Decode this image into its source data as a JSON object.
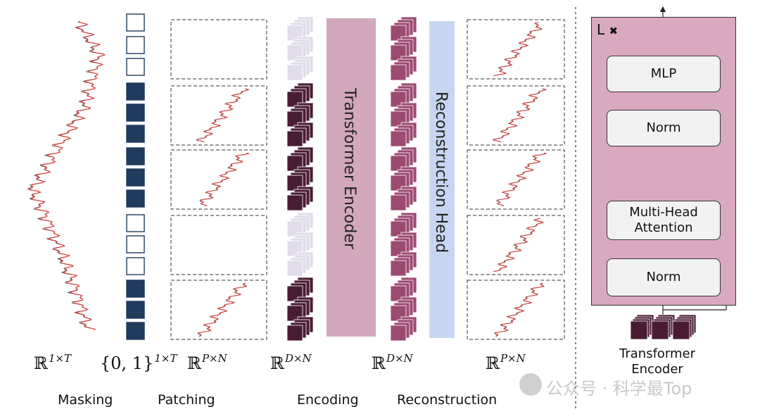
{
  "stage_labels": {
    "masking": "Masking",
    "patching": "Patching",
    "encoding": "Encoding",
    "reconstruction": "Reconstruction"
  },
  "math_labels": {
    "series": {
      "base": "ℝ",
      "sup": "1×T"
    },
    "mask": {
      "base": "{0, 1}",
      "sup": "1×T"
    },
    "patches": {
      "base": "ℝ",
      "sup": "P×N"
    },
    "embeddings": {
      "base": "ℝ",
      "sup": "D×N"
    },
    "recon_embeddings": {
      "base": "ℝ",
      "sup": "D×N"
    },
    "recon_patches": {
      "base": "ℝ",
      "sup": "P×N"
    }
  },
  "blocks": {
    "transformer_encoder": "Transformer Encoder",
    "reconstruction_head": "Reconstruction Head"
  },
  "detail": {
    "repeat": "L",
    "repeat_symbol": "✖",
    "mlp": "MLP",
    "norm_top": "Norm",
    "attention_line1": "Multi-Head",
    "attention_line2": "Attention",
    "norm_bottom": "Norm",
    "add_symbol": "+",
    "caption_line1": "Transformer",
    "caption_line2": "Encoder"
  },
  "mask_pattern": [
    0,
    0,
    0,
    1,
    1,
    1,
    1,
    1,
    1,
    0,
    0,
    0,
    1,
    1,
    1
  ],
  "patch_masked": [
    true,
    false,
    false,
    true,
    false
  ],
  "colors": {
    "mask_filled": "#1f3b5e",
    "embed_dark": "#4a1c34",
    "embed_faded": "#e1dcea",
    "recon_embed": "#9c4a72",
    "encoder_block": "#d1a8bc",
    "recon_head_block": "#c6d6f2",
    "detail_panel": "#d9a9c0",
    "series_red": "#d94545"
  },
  "watermark": "公众号 · 科学最Top"
}
